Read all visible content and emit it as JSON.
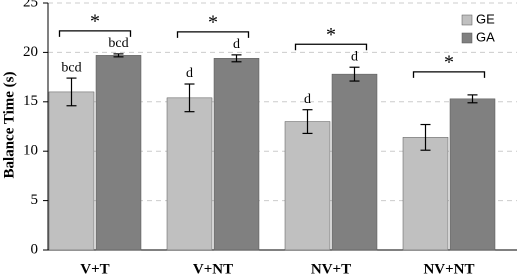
{
  "chart_data": {
    "type": "bar",
    "y_label": "Balance Time (s)",
    "categories": [
      "V+T",
      "V+NT",
      "NV+T",
      "NV+NT"
    ],
    "series": [
      {
        "name": "GE",
        "color": "#c0c0c0",
        "values": [
          16.0,
          15.4,
          13.0,
          11.4
        ],
        "errors": [
          1.4,
          1.4,
          1.2,
          1.3
        ],
        "annotations": [
          "bcd",
          "d",
          "d",
          null
        ]
      },
      {
        "name": "GA",
        "color": "#808080",
        "values": [
          19.7,
          19.4,
          17.8,
          15.3
        ],
        "errors": [
          0.15,
          0.35,
          0.7,
          0.4
        ],
        "annotations": [
          "bcd",
          "d",
          "d",
          null
        ]
      }
    ],
    "significance": [
      "*",
      "*",
      "*",
      "*"
    ],
    "ylim": [
      0,
      25
    ],
    "yticks": [
      0,
      5,
      10,
      15,
      20,
      25
    ],
    "grid": true,
    "legend": "top-right"
  }
}
